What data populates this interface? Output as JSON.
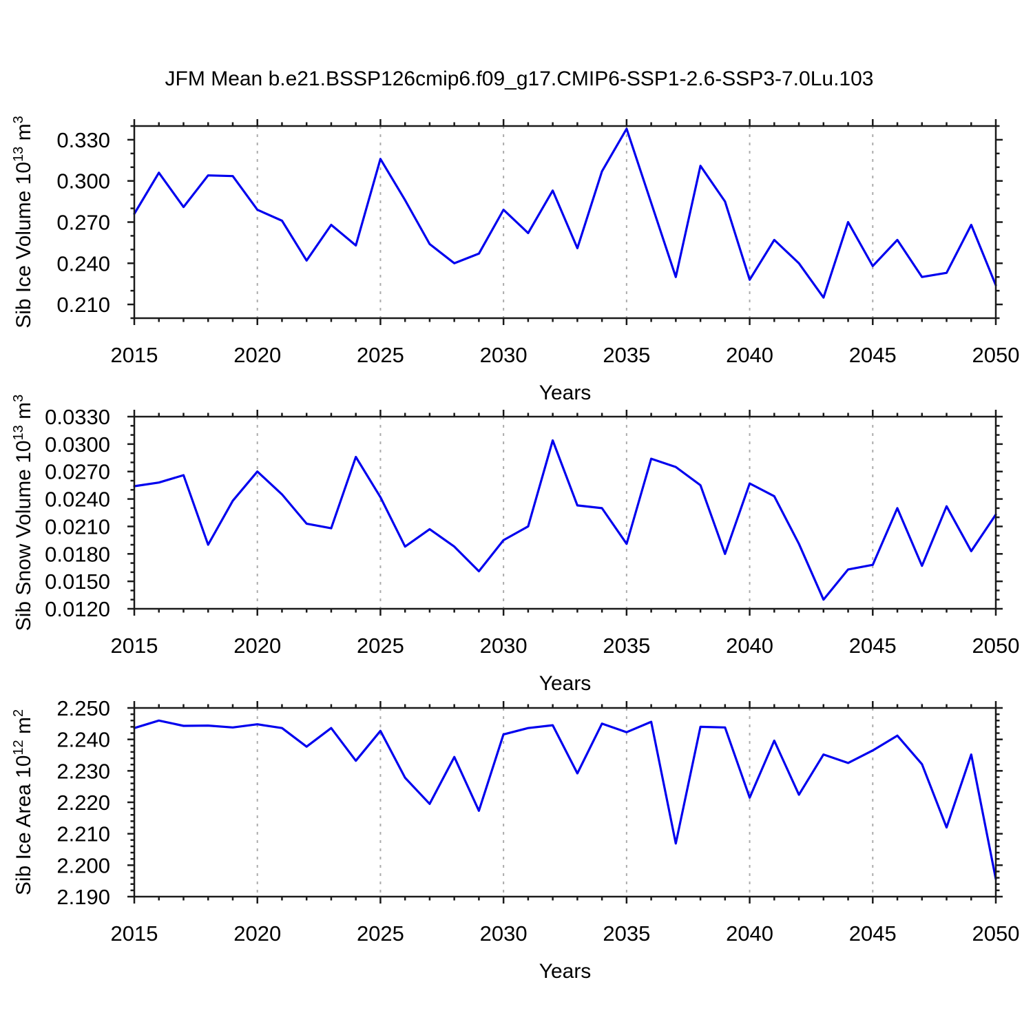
{
  "title": "JFM Mean b.e21.BSSP126cmip6.f09_g17.CMIP6-SSP1-2.6-SSP3-7.0Lu.103",
  "colors": {
    "line": "#0000ee",
    "grid": "#ababab",
    "frame": "#1a1a1a",
    "text": "#000000",
    "background": "#ffffff"
  },
  "x_axis": {
    "label": "Years",
    "start": 2015,
    "end": 2050,
    "major_step": 5,
    "minor_step": 1,
    "tick_labels": [
      "2015",
      "2020",
      "2025",
      "2030",
      "2035",
      "2040",
      "2045",
      "2050"
    ],
    "gridline_years": [
      2020,
      2025,
      2030,
      2035,
      2040,
      2045
    ]
  },
  "chart_data": [
    {
      "type": "line",
      "name": "sib-ice-volume",
      "ylabel": {
        "text": "Sib Ice Volume",
        "power_base": "10",
        "power_exp": "13",
        "unit": "m",
        "unit_exp": "3"
      },
      "ylim": [
        0.2,
        0.34
      ],
      "y_minor_step": 0.01,
      "yticks": [
        0.21,
        0.24,
        0.27,
        0.3,
        0.33
      ],
      "ytick_labels": [
        "0.210",
        "0.240",
        "0.270",
        "0.300",
        "0.330"
      ],
      "grid": "vertical-dashed",
      "legend": "none",
      "years": [
        2015,
        2016,
        2017,
        2018,
        2019,
        2020,
        2021,
        2022,
        2023,
        2024,
        2025,
        2026,
        2027,
        2028,
        2029,
        2030,
        2031,
        2032,
        2033,
        2034,
        2035,
        2036,
        2037,
        2038,
        2039,
        2040,
        2041,
        2042,
        2043,
        2044,
        2045,
        2046,
        2047,
        2048,
        2049,
        2050
      ],
      "values": [
        0.276,
        0.306,
        0.281,
        0.304,
        0.3035,
        0.279,
        0.271,
        0.242,
        0.268,
        0.253,
        0.316,
        0.286,
        0.254,
        0.24,
        0.247,
        0.279,
        0.262,
        0.293,
        0.251,
        0.307,
        0.338,
        0.284,
        0.23,
        0.311,
        0.285,
        0.228,
        0.257,
        0.24,
        0.215,
        0.27,
        0.238,
        0.257,
        0.23,
        0.233,
        0.268,
        0.224
      ]
    },
    {
      "type": "line",
      "name": "sib-snow-volume",
      "ylabel": {
        "text": "Sib Snow Volume",
        "power_base": "10",
        "power_exp": "13",
        "unit": "m",
        "unit_exp": "3"
      },
      "ylim": [
        0.012,
        0.033
      ],
      "y_minor_step": 0.001,
      "yticks": [
        0.012,
        0.015,
        0.018,
        0.021,
        0.024,
        0.027,
        0.03,
        0.033
      ],
      "ytick_labels": [
        "0.0120",
        "0.0150",
        "0.0180",
        "0.0210",
        "0.0240",
        "0.0270",
        "0.0300",
        "0.0330"
      ],
      "grid": "vertical-dashed",
      "legend": "none",
      "years": [
        2015,
        2016,
        2017,
        2018,
        2019,
        2020,
        2021,
        2022,
        2023,
        2024,
        2025,
        2026,
        2027,
        2028,
        2029,
        2030,
        2031,
        2032,
        2033,
        2034,
        2035,
        2036,
        2037,
        2038,
        2039,
        2040,
        2041,
        2042,
        2043,
        2044,
        2045,
        2046,
        2047,
        2048,
        2049,
        2050
      ],
      "values": [
        0.0254,
        0.0258,
        0.0266,
        0.019,
        0.0238,
        0.027,
        0.0245,
        0.0213,
        0.0208,
        0.0286,
        0.0242,
        0.0188,
        0.0207,
        0.0188,
        0.0161,
        0.0195,
        0.021,
        0.0304,
        0.0233,
        0.023,
        0.0191,
        0.0284,
        0.0275,
        0.0255,
        0.018,
        0.0257,
        0.0243,
        0.0191,
        0.013,
        0.0163,
        0.0168,
        0.023,
        0.0167,
        0.0232,
        0.0183,
        0.0223
      ]
    },
    {
      "type": "line",
      "name": "sib-ice-area",
      "ylabel": {
        "text": "Sib Ice Area",
        "power_base": "10",
        "power_exp": "12",
        "unit": "m",
        "unit_exp": "2"
      },
      "ylim": [
        2.19,
        2.25
      ],
      "y_minor_step": 0.002,
      "yticks": [
        2.19,
        2.2,
        2.21,
        2.22,
        2.23,
        2.24,
        2.25
      ],
      "ytick_labels": [
        "2.190",
        "2.200",
        "2.210",
        "2.220",
        "2.230",
        "2.240",
        "2.250"
      ],
      "grid": "vertical-dashed",
      "legend": "none",
      "years": [
        2015,
        2016,
        2017,
        2018,
        2019,
        2020,
        2021,
        2022,
        2023,
        2024,
        2025,
        2026,
        2027,
        2028,
        2029,
        2030,
        2031,
        2032,
        2033,
        2034,
        2035,
        2036,
        2037,
        2038,
        2039,
        2040,
        2041,
        2042,
        2043,
        2044,
        2045,
        2046,
        2047,
        2048,
        2049,
        2050
      ],
      "values": [
        2.2436,
        2.246,
        2.2443,
        2.2444,
        2.2438,
        2.2448,
        2.2436,
        2.2377,
        2.2436,
        2.2332,
        2.2427,
        2.2278,
        2.2195,
        2.2344,
        2.2173,
        2.2416,
        2.2436,
        2.2445,
        2.2292,
        2.245,
        2.2423,
        2.2456,
        2.2069,
        2.244,
        2.2438,
        2.2215,
        2.2396,
        2.2224,
        2.2352,
        2.2325,
        2.2365,
        2.2412,
        2.2321,
        2.212,
        2.2352,
        2.1956
      ]
    }
  ]
}
